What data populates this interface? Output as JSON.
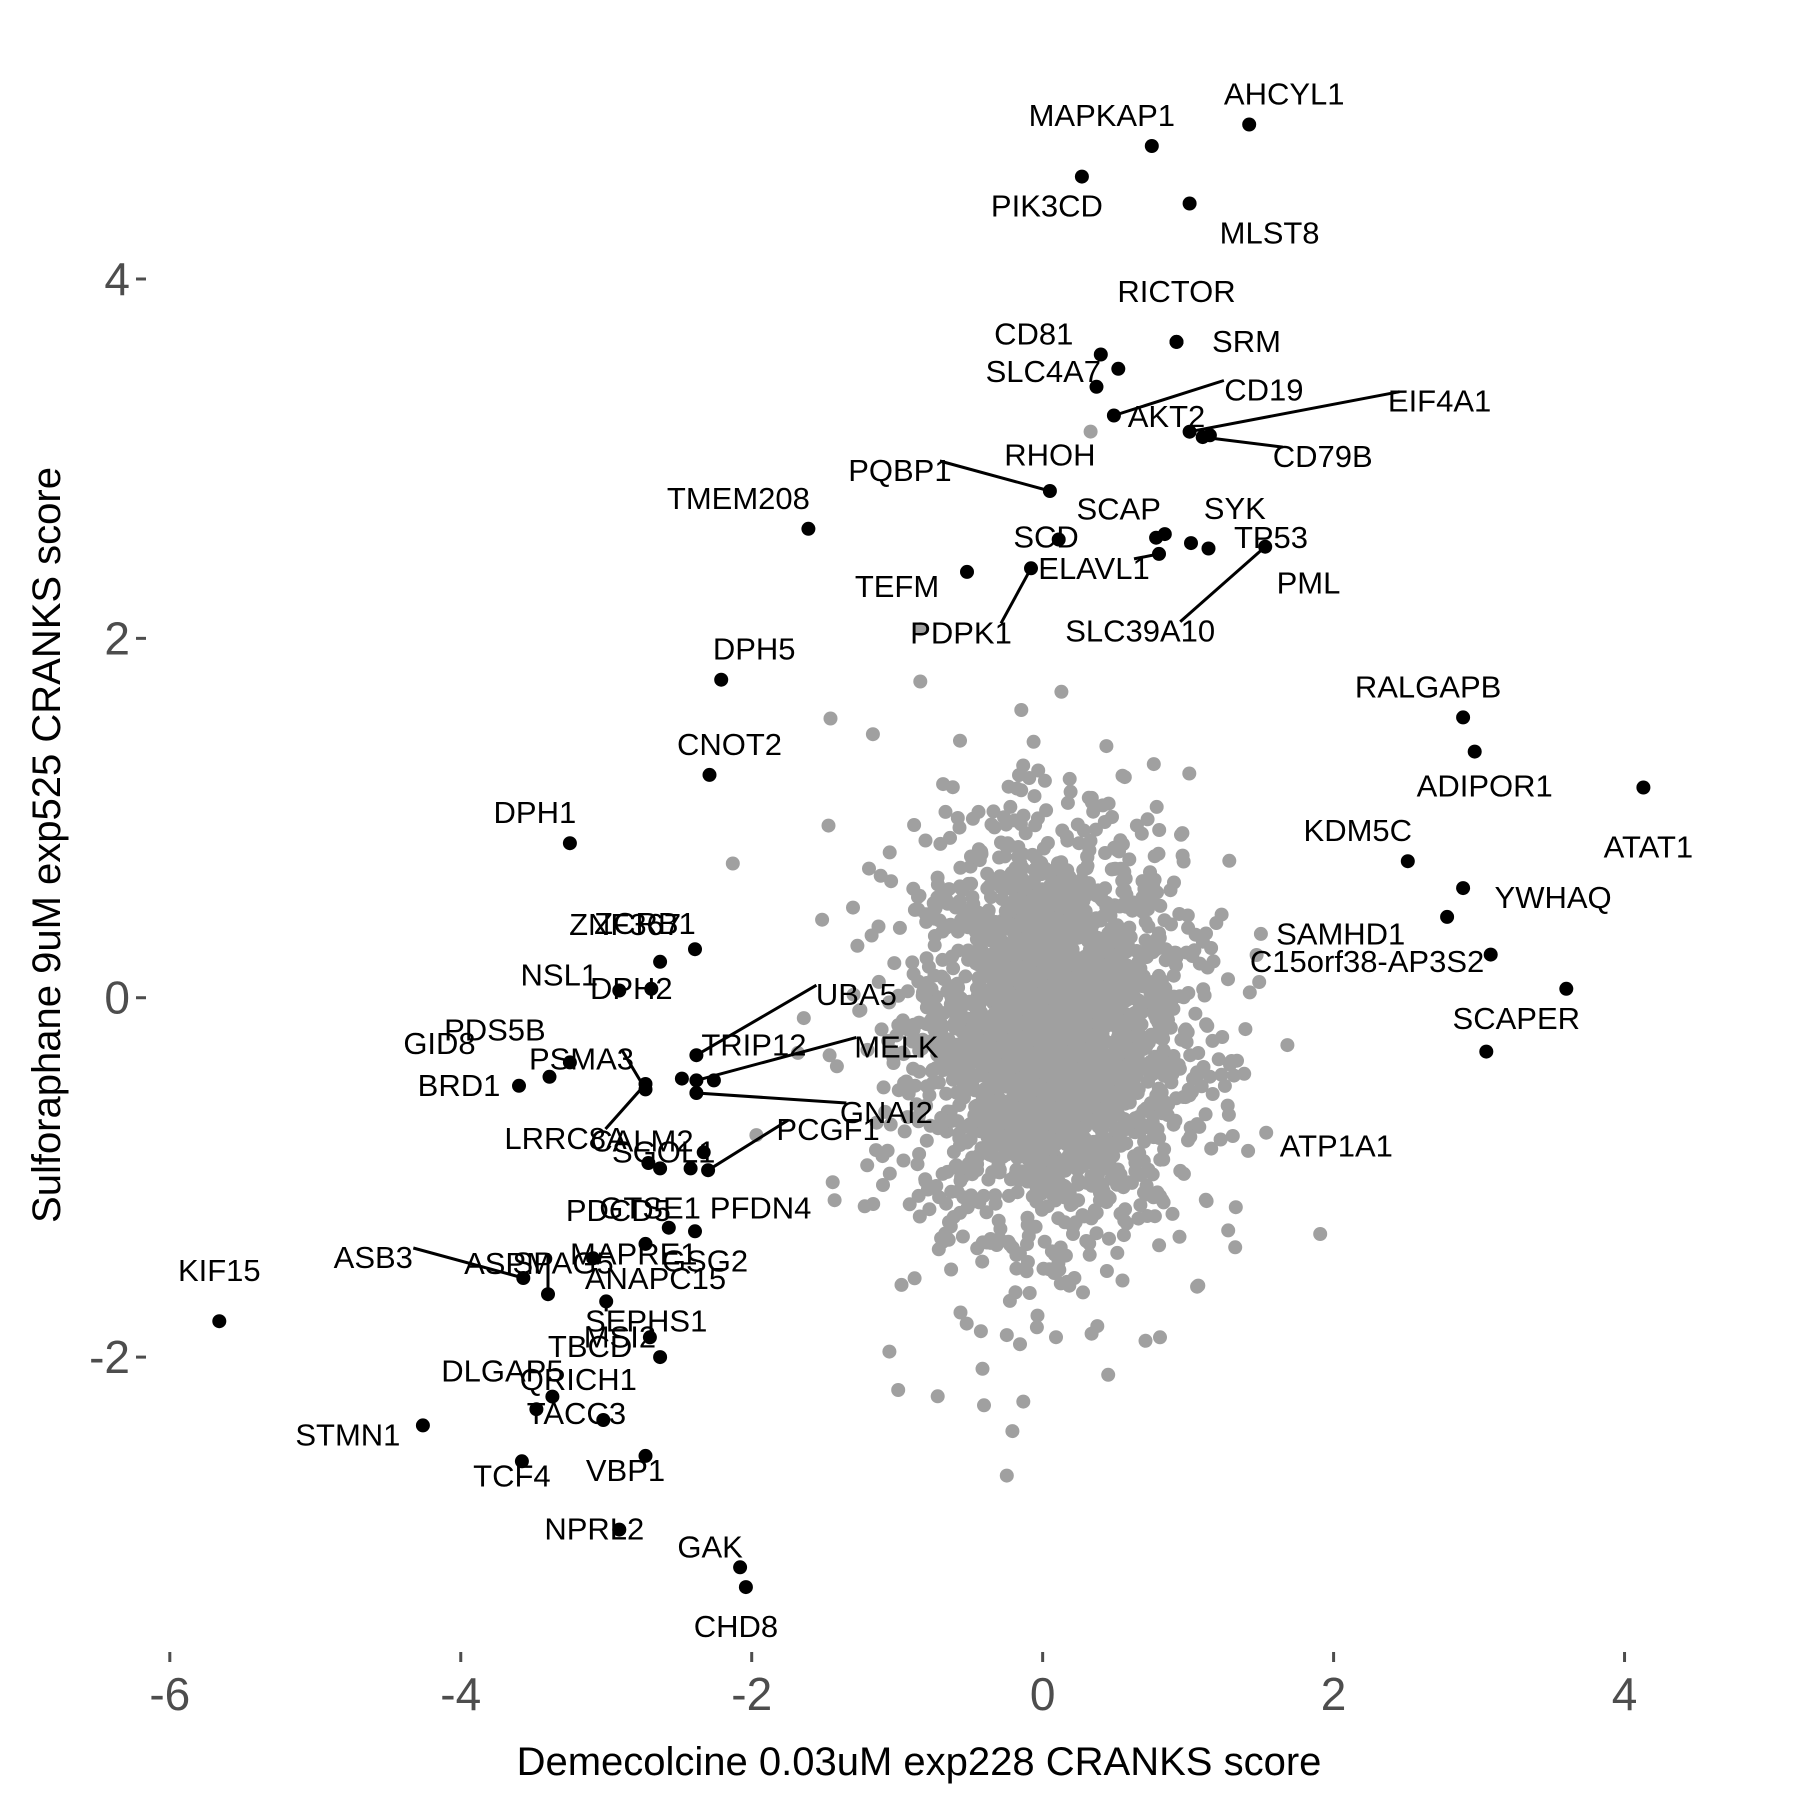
{
  "chart_data": {
    "type": "scatter",
    "xlabel": "Demecolcine 0.03uM exp228 CRANKS score",
    "ylabel": "Sulforaphane 9uM exp525 CRANKS score",
    "xlim": [
      -6.15,
      4.45
    ],
    "ylim": [
      -3.63,
      5.33
    ],
    "x_ticks": [
      -6,
      -4,
      -2,
      0,
      2,
      4
    ],
    "x_tick_labels": [
      "-6",
      "-4",
      "-2",
      "0",
      "2",
      "4"
    ],
    "y_ticks": [
      -2,
      0,
      2,
      4
    ],
    "y_tick_labels": [
      "-2",
      "0",
      "2",
      "4"
    ],
    "grid": false,
    "background_color": "#ffffff",
    "background_points": {
      "description_color": "#a0a0a0",
      "count": 2600,
      "center": [
        0.05,
        -0.2
      ],
      "sd": [
        0.45,
        0.55
      ]
    },
    "colors": {
      "highlight": "#000000",
      "background": "#a0a0a0",
      "tick": "#4d4d4d"
    },
    "series": [
      {
        "points": [
          {
            "label": "AHCYL1",
            "x": 1.42,
            "y": 4.86
          },
          {
            "label": "MAPKAP1",
            "x": 0.75,
            "y": 4.74
          },
          {
            "label": "PIK3CD",
            "x": 0.27,
            "y": 4.57
          },
          {
            "label": "MLST8",
            "x": 1.01,
            "y": 4.42
          },
          {
            "label": "RICTOR",
            "x": 0.92,
            "y": 3.65
          },
          {
            "label": "SRM",
            "x": 0.92,
            "y": 3.65
          },
          {
            "label": "CD81",
            "x": 0.4,
            "y": 3.58
          },
          {
            "label": "SLC4A7",
            "x": 0.52,
            "y": 3.5
          },
          {
            "label": "AKT2",
            "x": 0.37,
            "y": 3.4
          },
          {
            "label": "CD19",
            "x": 0.49,
            "y": 3.24
          },
          {
            "label": "EIF4A1",
            "x": 1.01,
            "y": 3.15
          },
          {
            "label": "CD79B",
            "x": 1.1,
            "y": 3.12
          },
          {
            "label": "RHOH",
            "x": 1.15,
            "y": 3.13
          },
          {
            "label": "PQBP1",
            "x": 0.05,
            "y": 2.82
          },
          {
            "label": "TMEM208",
            "x": -1.61,
            "y": 2.61
          },
          {
            "label": "SCAP",
            "x": 0.11,
            "y": 2.55
          },
          {
            "label": "SYK",
            "x": 0.84,
            "y": 2.58
          },
          {
            "label": "SCD",
            "x": 0.78,
            "y": 2.56
          },
          {
            "label": "TP53",
            "x": 1.02,
            "y": 2.53
          },
          {
            "label": "PML",
            "x": 1.14,
            "y": 2.5
          },
          {
            "label": "ELAVL1",
            "x": 0.8,
            "y": 2.47
          },
          {
            "label": "TEFM",
            "x": -0.52,
            "y": 2.37
          },
          {
            "label": "PDPK1",
            "x": -0.08,
            "y": 2.39
          },
          {
            "label": "SLC39A10",
            "x": 1.53,
            "y": 2.51
          },
          {
            "label": "DPH5",
            "x": -2.21,
            "y": 1.77
          },
          {
            "label": "RALGAPB",
            "x": 2.89,
            "y": 1.56
          },
          {
            "label": "ADIPOR1",
            "x": 2.97,
            "y": 1.37
          },
          {
            "label": "CNOT2",
            "x": -2.29,
            "y": 1.24
          },
          {
            "label": "ATAT1",
            "x": 4.13,
            "y": 1.17
          },
          {
            "label": "DPH1",
            "x": -3.25,
            "y": 0.86
          },
          {
            "label": "KDM5C",
            "x": 2.51,
            "y": 0.76
          },
          {
            "label": "YWHAQ",
            "x": 2.89,
            "y": 0.61
          },
          {
            "label": "C15orf38-AP3S2",
            "x": 2.78,
            "y": 0.45
          },
          {
            "label": "ZCRB1",
            "x": -2.39,
            "y": 0.27
          },
          {
            "label": "SAMHD1",
            "x": 3.08,
            "y": 0.24
          },
          {
            "label": "ZNF367",
            "x": -2.63,
            "y": 0.2
          },
          {
            "label": "NSL1",
            "x": -2.91,
            "y": 0.04
          },
          {
            "label": "DPH2",
            "x": -2.69,
            "y": 0.05
          },
          {
            "label": "SCAPER",
            "x": 3.6,
            "y": 0.05
          },
          {
            "label": "UBA5",
            "x": -2.38,
            "y": -0.32
          },
          {
            "label": "PDS5B",
            "x": -3.25,
            "y": -0.36
          },
          {
            "label": "GID8",
            "x": -3.39,
            "y": -0.44
          },
          {
            "label": "TRIP12",
            "x": -2.26,
            "y": -0.46
          },
          {
            "label": "MELK",
            "x": -2.38,
            "y": -0.46
          },
          {
            "label": "ATP1A1",
            "x": 3.05,
            "y": -0.3
          },
          {
            "label": "BRD1",
            "x": -3.6,
            "y": -0.49
          },
          {
            "label": "LRRC8A",
            "x": -2.73,
            "y": -0.48
          },
          {
            "label": "GNAI2",
            "x": -2.38,
            "y": -0.53
          },
          {
            "label": "CALM2",
            "x": -2.48,
            "y": -0.45
          },
          {
            "label": "PSMA3",
            "x": -2.73,
            "y": -0.51
          },
          {
            "label": "SGOL1",
            "x": -2.33,
            "y": -0.86
          },
          {
            "label": "PCGF1",
            "x": -2.3,
            "y": -0.96
          },
          {
            "label": "PFDN4",
            "x": -2.42,
            "y": -0.95
          },
          {
            "label": "GTSE1",
            "x": -2.63,
            "y": -0.95
          },
          {
            "label": "PDCD5",
            "x": -2.71,
            "y": -0.92
          },
          {
            "label": "GSG2",
            "x": -2.39,
            "y": -1.3
          },
          {
            "label": "SPAG5",
            "x": -3.09,
            "y": -1.45
          },
          {
            "label": "ANAPC15",
            "x": -2.73,
            "y": -1.37
          },
          {
            "label": "MAPRE1",
            "x": -2.57,
            "y": -1.28
          },
          {
            "label": "ASB3",
            "x": -3.57,
            "y": -1.56
          },
          {
            "label": "KIF15",
            "x": -5.66,
            "y": -1.8
          },
          {
            "label": "ASPM",
            "x": -3.4,
            "y": -1.65
          },
          {
            "label": "SEPHS1",
            "x": -3.0,
            "y": -1.69
          },
          {
            "label": "TBCD",
            "x": -2.63,
            "y": -2.0
          },
          {
            "label": "MSI2",
            "x": -2.7,
            "y": -1.89
          },
          {
            "label": "DLGAP5",
            "x": -3.37,
            "y": -2.22
          },
          {
            "label": "STMN1",
            "x": -4.26,
            "y": -2.38
          },
          {
            "label": "TACC3",
            "x": -3.48,
            "y": -2.29
          },
          {
            "label": "QRICH1",
            "x": -3.02,
            "y": -2.35
          },
          {
            "label": "TCF4",
            "x": -3.58,
            "y": -2.58
          },
          {
            "label": "VBP1",
            "x": -2.73,
            "y": -2.55
          },
          {
            "label": "NPRL2",
            "x": -2.91,
            "y": -2.96
          },
          {
            "label": "GAK",
            "x": -2.08,
            "y": -3.17
          },
          {
            "label": "CHD8",
            "x": -2.04,
            "y": -3.28
          }
        ]
      }
    ]
  }
}
